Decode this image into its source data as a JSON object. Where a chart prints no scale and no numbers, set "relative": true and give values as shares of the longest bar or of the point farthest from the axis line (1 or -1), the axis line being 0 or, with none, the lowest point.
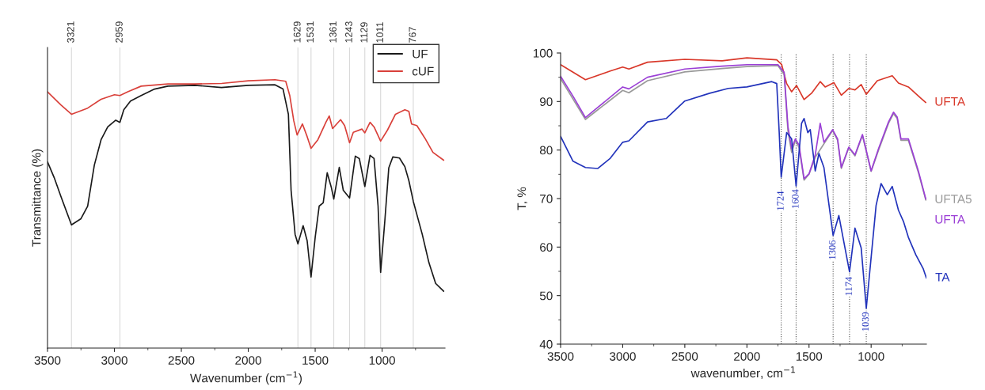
{
  "chart_data": [
    {
      "type": "line",
      "xlabel": "Wavenumber (cm$^{−1}$)",
      "ylabel": "Transmittance (%)",
      "relative": true,
      "tick_labels": "x",
      "legend": "top right",
      "grid": false,
      "xlim": [
        3500,
        530
      ],
      "xticks": [
        3500,
        3000,
        2500,
        2000,
        1500,
        1000
      ],
      "ref_lines": [
        {
          "axis": "x",
          "value": 3321,
          "label": "3321",
          "color": "#d9d9d9"
        },
        {
          "axis": "x",
          "value": 2959,
          "label": "2959",
          "color": "#d9d9d9"
        },
        {
          "axis": "x",
          "value": 1629,
          "label": "1629",
          "color": "#d9d9d9"
        },
        {
          "axis": "x",
          "value": 1531,
          "label": "1531",
          "color": "#d9d9d9"
        },
        {
          "axis": "x",
          "value": 1361,
          "label": "1361",
          "color": "#d9d9d9"
        },
        {
          "axis": "x",
          "value": 1243,
          "label": "1243",
          "color": "#d9d9d9"
        },
        {
          "axis": "x",
          "value": 1129,
          "label": "1129",
          "color": "#d9d9d9"
        },
        {
          "axis": "x",
          "value": 1011,
          "label": "1011",
          "color": "#d9d9d9"
        },
        {
          "axis": "x",
          "value": 767,
          "label": "767",
          "color": "#d9d9d9"
        }
      ],
      "series": [
        {
          "name": "UF",
          "color": "#1a1a1a",
          "x": [
            3500,
            3450,
            3400,
            3321,
            3250,
            3200,
            3150,
            3100,
            3050,
            2990,
            2959,
            2930,
            2880,
            2800,
            2700,
            2600,
            2400,
            2200,
            2000,
            1800,
            1740,
            1700,
            1680,
            1650,
            1629,
            1590,
            1560,
            1531,
            1500,
            1470,
            1440,
            1410,
            1380,
            1361,
            1320,
            1290,
            1243,
            1200,
            1170,
            1129,
            1090,
            1060,
            1030,
            1011,
            980,
            950,
            920,
            870,
            830,
            800,
            767,
            700,
            650,
            600,
            540
          ],
          "values": [
            0.694,
            0.635,
            0.565,
            0.459,
            0.482,
            0.529,
            0.682,
            0.776,
            0.824,
            0.849,
            0.841,
            0.888,
            0.92,
            0.941,
            0.965,
            0.976,
            0.979,
            0.971,
            0.979,
            0.981,
            0.965,
            0.871,
            0.588,
            0.424,
            0.388,
            0.456,
            0.4,
            0.265,
            0.412,
            0.529,
            0.541,
            0.653,
            0.6,
            0.555,
            0.673,
            0.588,
            0.559,
            0.715,
            0.706,
            0.602,
            0.718,
            0.706,
            0.529,
            0.282,
            0.471,
            0.671,
            0.712,
            0.708,
            0.676,
            0.624,
            0.547,
            0.424,
            0.318,
            0.241,
            0.212
          ]
        },
        {
          "name": "cUF",
          "color": "#d9403a",
          "x": [
            3500,
            3400,
            3321,
            3200,
            3100,
            3000,
            2959,
            2900,
            2800,
            2600,
            2400,
            2200,
            2000,
            1800,
            1720,
            1690,
            1660,
            1635,
            1595,
            1560,
            1531,
            1480,
            1420,
            1395,
            1370,
            1310,
            1280,
            1243,
            1215,
            1150,
            1129,
            1090,
            1060,
            1011,
            960,
            900,
            830,
            800,
            780,
            740,
            680,
            620,
            540
          ],
          "values": [
            0.955,
            0.906,
            0.871,
            0.894,
            0.927,
            0.944,
            0.941,
            0.955,
            0.976,
            0.984,
            0.984,
            0.986,
            0.996,
            1.0,
            0.994,
            0.941,
            0.847,
            0.794,
            0.835,
            0.788,
            0.744,
            0.776,
            0.841,
            0.865,
            0.818,
            0.851,
            0.829,
            0.765,
            0.804,
            0.816,
            0.802,
            0.841,
            0.824,
            0.771,
            0.812,
            0.871,
            0.888,
            0.882,
            0.835,
            0.829,
            0.782,
            0.729,
            0.7
          ]
        }
      ]
    },
    {
      "type": "line",
      "xlabel": "wavenumber, cm$^{−1}$",
      "ylabel": "T, %",
      "legend": false,
      "grid": false,
      "xlim": [
        3500,
        555
      ],
      "xticks": [
        3500,
        3000,
        2500,
        2000,
        1500,
        1000
      ],
      "ylim": [
        40,
        100
      ],
      "yticks": [
        40,
        50,
        60,
        70,
        80,
        90,
        100
      ],
      "ref_lines": [
        {
          "axis": "x",
          "value": 1724,
          "color": "#555555",
          "line_style": "dotted"
        },
        {
          "axis": "x",
          "value": 1604,
          "color": "#555555",
          "line_style": "dotted"
        },
        {
          "axis": "x",
          "value": 1306,
          "color": "#555555",
          "line_style": "dotted"
        },
        {
          "axis": "x",
          "value": 1174,
          "color": "#555555",
          "line_style": "dotted"
        },
        {
          "axis": "x",
          "value": 1039,
          "color": "#555555",
          "line_style": "dotted"
        }
      ],
      "annotations": [
        {
          "text": "1724",
          "x": 1724,
          "y": 69.5
        },
        {
          "text": "1604",
          "x": 1604,
          "y": 69.9
        },
        {
          "text": "1306",
          "x": 1306,
          "y": 59.4
        },
        {
          "text": "1174",
          "x": 1174,
          "y": 51.9
        },
        {
          "text": "1039",
          "x": 1039,
          "y": 44.6
        }
      ],
      "series": [
        {
          "name": "UFTA",
          "color": "#d9382a",
          "x": [
            3500,
            3300,
            3100,
            3000,
            2950,
            2800,
            2500,
            2200,
            2000,
            1760,
            1720,
            1680,
            1640,
            1600,
            1540,
            1480,
            1410,
            1370,
            1300,
            1240,
            1180,
            1130,
            1080,
            1039,
            950,
            830,
            780,
            700,
            600,
            560
          ],
          "values": [
            97.6,
            94.5,
            96.3,
            97.1,
            96.7,
            98.1,
            98.7,
            98.4,
            99.0,
            98.6,
            97.6,
            93.7,
            92.0,
            93.3,
            90.4,
            91.7,
            94.1,
            93.0,
            93.9,
            91.3,
            92.7,
            92.4,
            93.5,
            91.5,
            94.3,
            95.3,
            93.8,
            93.0,
            90.7,
            89.8
          ]
        },
        {
          "name": "UFTA5",
          "color": "#9a9a9a",
          "x": [
            3500,
            3300,
            3200,
            3000,
            2950,
            2800,
            2500,
            2200,
            2000,
            1750,
            1700,
            1670,
            1640,
            1610,
            1580,
            1540,
            1500,
            1450,
            1410,
            1380,
            1310,
            1270,
            1240,
            1180,
            1130,
            1070,
            1000,
            940,
            860,
            820,
            790,
            760,
            700,
            620,
            560
          ],
          "values": [
            94.7,
            86.3,
            88.3,
            92.3,
            91.8,
            94.3,
            96.1,
            96.8,
            97.2,
            97.4,
            95.5,
            84.0,
            79.5,
            82.0,
            80.5,
            73.8,
            75.0,
            78.5,
            null,
            81.3,
            84.0,
            82.0,
            76.2,
            80.5,
            78.8,
            83.0,
            75.6,
            80.0,
            85.5,
            87.5,
            86.5,
            82.0,
            82.0,
            75.4,
            69.7
          ]
        },
        {
          "name": "UFTA",
          "color": "#9b3fd6",
          "x": [
            3500,
            3400,
            3300,
            3200,
            3000,
            2950,
            2800,
            2500,
            2200,
            2000,
            1750,
            1700,
            1670,
            1640,
            1610,
            1580,
            1540,
            1500,
            1450,
            1410,
            1380,
            1310,
            1270,
            1240,
            1180,
            1130,
            1070,
            1000,
            940,
            860,
            820,
            790,
            760,
            700,
            620,
            560
          ],
          "values": [
            95.2,
            91.1,
            86.7,
            88.8,
            93.0,
            92.6,
            95.0,
            96.7,
            97.3,
            97.6,
            97.6,
            96.0,
            84.9,
            80.3,
            82.3,
            81.0,
            74.1,
            75.1,
            79.0,
            85.5,
            81.6,
            84.2,
            82.3,
            76.4,
            80.6,
            79.0,
            83.2,
            75.7,
            80.3,
            85.8,
            87.8,
            86.8,
            82.3,
            82.3,
            75.7,
            69.9
          ]
        },
        {
          "name": "TA",
          "color": "#2233bb",
          "x": [
            3500,
            3400,
            3300,
            3200,
            3100,
            3000,
            2950,
            2800,
            2650,
            2500,
            2300,
            2150,
            2000,
            1800,
            1760,
            1740,
            1724,
            1680,
            1640,
            1604,
            1560,
            1540,
            1510,
            1490,
            1450,
            1420,
            1380,
            1306,
            1260,
            1174,
            1130,
            1080,
            1039,
            960,
            920,
            870,
            830,
            780,
            740,
            700,
            640,
            580,
            555
          ],
          "values": [
            82.8,
            77.7,
            76.4,
            76.2,
            78.3,
            81.6,
            81.9,
            85.8,
            86.5,
            90.1,
            91.7,
            92.7,
            93.0,
            94.1,
            93.7,
            83.6,
            74.4,
            83.6,
            82.3,
            72.6,
            85.5,
            86.5,
            83.6,
            84.2,
            75.7,
            79.3,
            76.4,
            62.4,
            66.5,
            54.9,
            63.9,
            59.8,
            47.4,
            68.6,
            73.1,
            70.8,
            72.5,
            67.6,
            65.3,
            62.0,
            58.4,
            55.5,
            53.6
          ]
        }
      ]
    }
  ]
}
